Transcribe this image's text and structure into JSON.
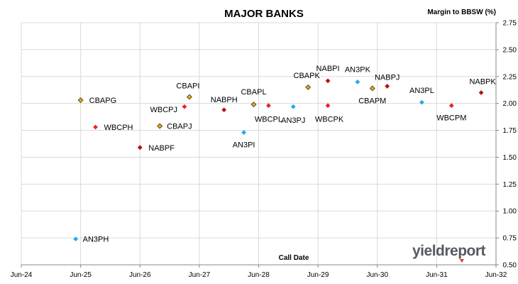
{
  "chart_data": {
    "type": "scatter",
    "title": "MAJOR BANKS",
    "ylabel": "Margin to BBSW (%)",
    "xlabel": "Call Date",
    "xlim": [
      "2024-06",
      "2032-06"
    ],
    "ylim": [
      0.5,
      2.75
    ],
    "yticks": [
      "0.50",
      "0.75",
      "1.00",
      "1.25",
      "1.50",
      "1.75",
      "2.00",
      "2.25",
      "2.50",
      "2.75"
    ],
    "xticks": [
      {
        "date": "2024-06",
        "label": "Jun-24"
      },
      {
        "date": "2025-06",
        "label": "Jun-25"
      },
      {
        "date": "2026-06",
        "label": "Jun-26"
      },
      {
        "date": "2027-06",
        "label": "Jun-27"
      },
      {
        "date": "2028-06",
        "label": "Jun-28"
      },
      {
        "date": "2029-06",
        "label": "Jun-29"
      },
      {
        "date": "2030-06",
        "label": "Jun-30"
      },
      {
        "date": "2031-06",
        "label": "Jun-31"
      },
      {
        "date": "2032-06",
        "label": "Jun-32"
      }
    ],
    "grid": true,
    "colors": {
      "CBA": "#f0a800",
      "WBC": "#ee2222",
      "AN3": "#22aaee",
      "NAB": "#bb1111"
    },
    "points": [
      {
        "name": "AN3PH",
        "issuer": "AN3",
        "x": "2025-05",
        "y": 0.74
      },
      {
        "name": "CBAPG",
        "issuer": "CBA",
        "x": "2025-06",
        "y": 2.03
      },
      {
        "name": "WBCPH",
        "issuer": "WBC",
        "x": "2025-09",
        "y": 1.78
      },
      {
        "name": "NABPF",
        "issuer": "NAB",
        "x": "2026-06",
        "y": 1.59
      },
      {
        "name": "CBAPJ",
        "issuer": "CBA",
        "x": "2026-10",
        "y": 1.79
      },
      {
        "name": "WBCPJ",
        "issuer": "WBC",
        "x": "2027-03",
        "y": 1.97
      },
      {
        "name": "CBAPI",
        "issuer": "CBA",
        "x": "2027-04",
        "y": 2.06
      },
      {
        "name": "NABPH",
        "issuer": "NAB",
        "x": "2027-11",
        "y": 1.94
      },
      {
        "name": "AN3PI",
        "issuer": "AN3",
        "x": "2028-03",
        "y": 1.73
      },
      {
        "name": "CBAPL",
        "issuer": "CBA",
        "x": "2028-05",
        "y": 1.99
      },
      {
        "name": "WBCPL",
        "issuer": "WBC",
        "x": "2028-08",
        "y": 1.98
      },
      {
        "name": "AN3PJ",
        "issuer": "AN3",
        "x": "2029-01",
        "y": 1.97
      },
      {
        "name": "CBAPK",
        "issuer": "CBA",
        "x": "2029-04",
        "y": 2.15
      },
      {
        "name": "NABPI",
        "issuer": "NAB",
        "x": "2029-08",
        "y": 2.21
      },
      {
        "name": "WBCPK",
        "issuer": "WBC",
        "x": "2029-08",
        "y": 1.98
      },
      {
        "name": "AN3PK",
        "issuer": "AN3",
        "x": "2030-02",
        "y": 2.2
      },
      {
        "name": "CBAPM",
        "issuer": "CBA",
        "x": "2030-05",
        "y": 2.14
      },
      {
        "name": "NABPJ",
        "issuer": "NAB",
        "x": "2030-08",
        "y": 2.16
      },
      {
        "name": "AN3PL",
        "issuer": "AN3",
        "x": "2031-03",
        "y": 2.01
      },
      {
        "name": "WBCPM",
        "issuer": "WBC",
        "x": "2031-09",
        "y": 1.98
      },
      {
        "name": "NABPK",
        "issuer": "NAB",
        "x": "2032-03",
        "y": 2.1
      }
    ]
  },
  "logo": {
    "text": "yieldreport"
  }
}
